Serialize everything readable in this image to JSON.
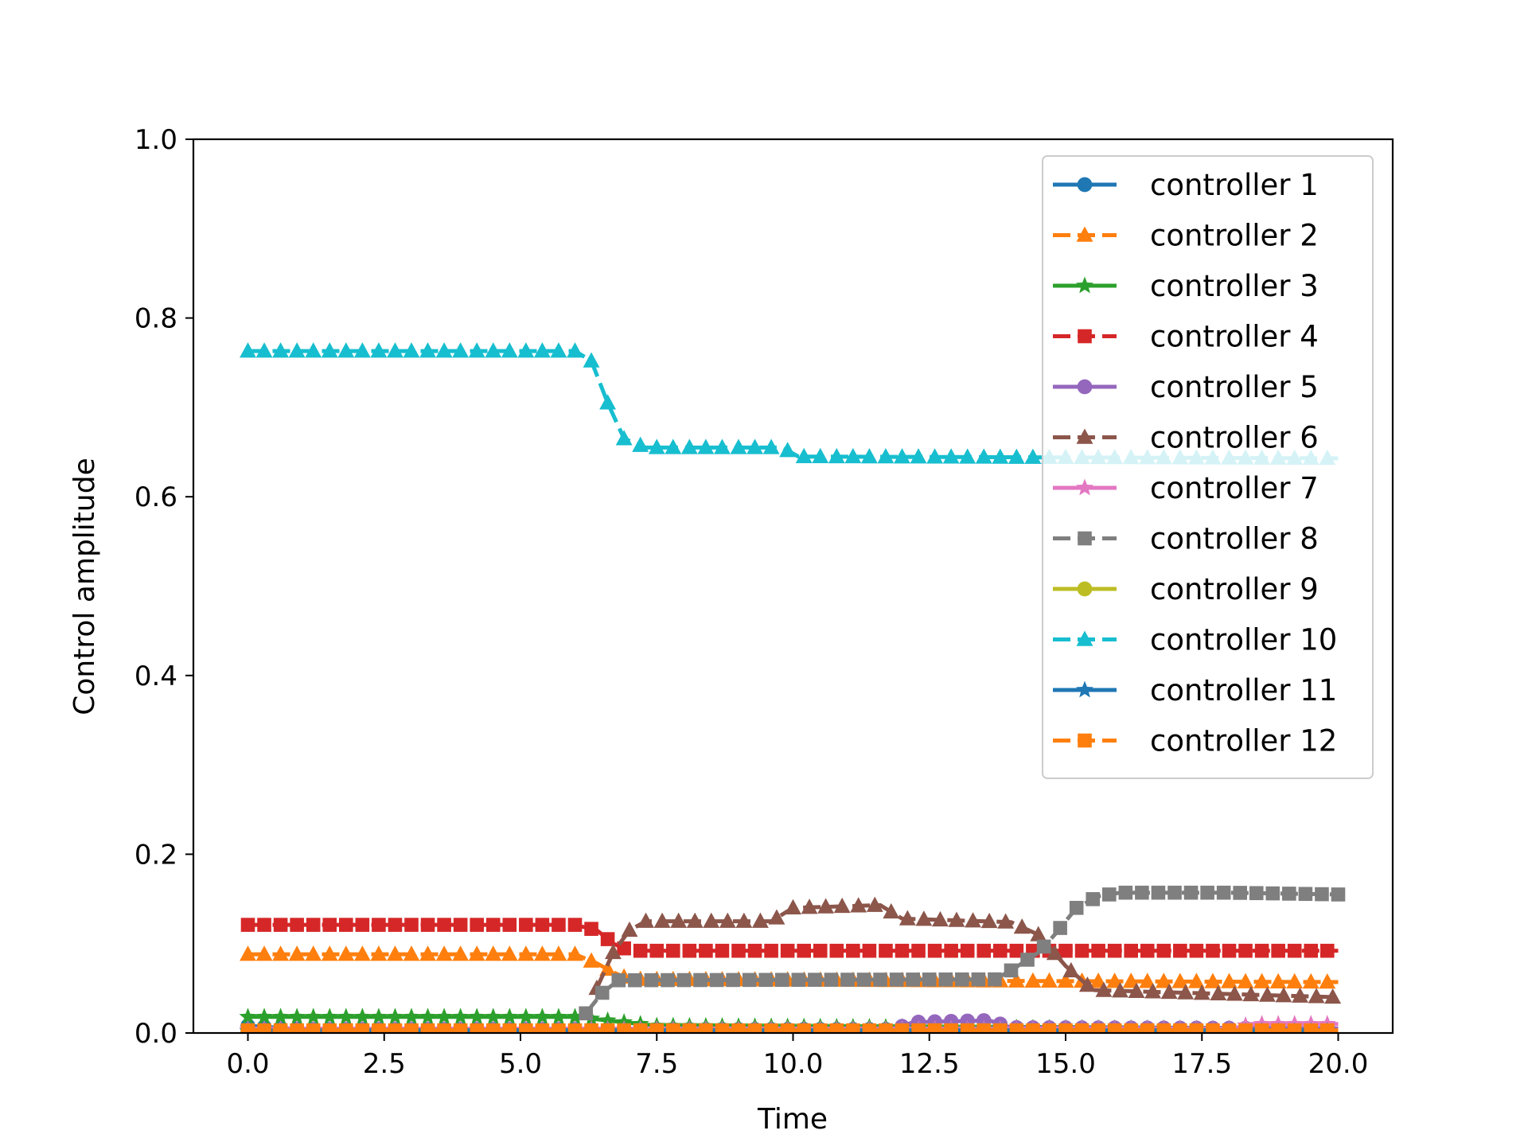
{
  "chart_data": {
    "type": "line",
    "xlabel": "Time",
    "ylabel": "Control amplitude",
    "xlim": [
      -1.0,
      21.0
    ],
    "ylim": [
      0.0,
      1.0
    ],
    "xticks": [
      "0.0",
      "2.5",
      "5.0",
      "7.5",
      "10.0",
      "12.5",
      "15.0",
      "17.5",
      "20.0"
    ],
    "yticks": [
      "0.0",
      "0.2",
      "0.4",
      "0.6",
      "0.8",
      "1.0"
    ],
    "grid": false,
    "legend_position": "top-right",
    "series": [
      {
        "name": "controller 1",
        "color": "#1f77b4",
        "marker": "circle",
        "dash": "solid",
        "points": [
          [
            0.0,
            0.008
          ],
          [
            1.0,
            0.004
          ],
          [
            5.0,
            0.004
          ],
          [
            20.0,
            0.004
          ]
        ]
      },
      {
        "name": "controller 2",
        "color": "#ff7f0e",
        "marker": "triangle",
        "dash": "dashed",
        "points": [
          [
            0.0,
            0.088
          ],
          [
            6.0,
            0.088
          ],
          [
            6.4,
            0.078
          ],
          [
            6.7,
            0.068
          ],
          [
            7.0,
            0.06
          ],
          [
            15.0,
            0.058
          ],
          [
            20.0,
            0.057
          ]
        ]
      },
      {
        "name": "controller 3",
        "color": "#2ca02c",
        "marker": "star",
        "dash": "solid",
        "points": [
          [
            0.0,
            0.018
          ],
          [
            6.0,
            0.018
          ],
          [
            6.6,
            0.014
          ],
          [
            7.5,
            0.008
          ],
          [
            10.0,
            0.007
          ],
          [
            20.0,
            0.004
          ]
        ]
      },
      {
        "name": "controller 4",
        "color": "#d62728",
        "marker": "square",
        "dash": "dashed",
        "points": [
          [
            0.0,
            0.121
          ],
          [
            6.0,
            0.121
          ],
          [
            6.4,
            0.115
          ],
          [
            6.7,
            0.1
          ],
          [
            7.0,
            0.092
          ],
          [
            10.0,
            0.092
          ],
          [
            20.0,
            0.092
          ]
        ]
      },
      {
        "name": "controller 5",
        "color": "#9467bd",
        "marker": "circle",
        "dash": "solid",
        "points": [
          [
            0.0,
            0.003
          ],
          [
            11.8,
            0.003
          ],
          [
            12.2,
            0.012
          ],
          [
            13.6,
            0.014
          ],
          [
            14.0,
            0.006
          ],
          [
            20.0,
            0.005
          ]
        ]
      },
      {
        "name": "controller 6",
        "color": "#8c564b",
        "marker": "triangle",
        "dash": "dashed",
        "points": [
          [
            6.4,
            0.05
          ],
          [
            6.7,
            0.09
          ],
          [
            7.0,
            0.115
          ],
          [
            7.3,
            0.125
          ],
          [
            9.6,
            0.125
          ],
          [
            10.0,
            0.14
          ],
          [
            11.6,
            0.143
          ],
          [
            12.0,
            0.128
          ],
          [
            14.0,
            0.124
          ],
          [
            14.5,
            0.11
          ],
          [
            15.0,
            0.075
          ],
          [
            15.5,
            0.048
          ],
          [
            20.0,
            0.04
          ]
        ]
      },
      {
        "name": "controller 7",
        "color": "#e377c2",
        "marker": "star",
        "dash": "solid",
        "points": [
          [
            0.0,
            0.004
          ],
          [
            18.0,
            0.004
          ],
          [
            18.4,
            0.01
          ],
          [
            20.0,
            0.01
          ]
        ]
      },
      {
        "name": "controller 8",
        "color": "#7f7f7f",
        "marker": "square",
        "dash": "dashed",
        "points": [
          [
            6.2,
            0.022
          ],
          [
            6.5,
            0.045
          ],
          [
            6.8,
            0.059
          ],
          [
            13.7,
            0.06
          ],
          [
            14.0,
            0.07
          ],
          [
            14.5,
            0.09
          ],
          [
            14.8,
            0.11
          ],
          [
            15.2,
            0.14
          ],
          [
            15.6,
            0.153
          ],
          [
            16.0,
            0.157
          ],
          [
            18.0,
            0.157
          ],
          [
            20.0,
            0.155
          ]
        ]
      },
      {
        "name": "controller 9",
        "color": "#bcbd22",
        "marker": "circle",
        "dash": "solid",
        "points": [
          [
            0.0,
            0.002
          ],
          [
            20.0,
            0.002
          ]
        ]
      },
      {
        "name": "controller 10",
        "color": "#17becf",
        "marker": "triangle",
        "dash": "dashed",
        "points": [
          [
            0.0,
            0.763
          ],
          [
            6.0,
            0.763
          ],
          [
            6.3,
            0.752
          ],
          [
            6.6,
            0.705
          ],
          [
            6.9,
            0.665
          ],
          [
            7.3,
            0.655
          ],
          [
            9.8,
            0.655
          ],
          [
            10.1,
            0.645
          ],
          [
            20.0,
            0.643
          ]
        ]
      },
      {
        "name": "controller 11",
        "color": "#1f77b4",
        "marker": "star",
        "dash": "solid",
        "points": [
          [
            0.0,
            0.002
          ],
          [
            20.0,
            0.002
          ]
        ]
      },
      {
        "name": "controller 12",
        "color": "#ff7f0e",
        "marker": "square",
        "dash": "dashed",
        "points": [
          [
            0.0,
            0.003
          ],
          [
            20.0,
            0.003
          ]
        ]
      }
    ]
  }
}
